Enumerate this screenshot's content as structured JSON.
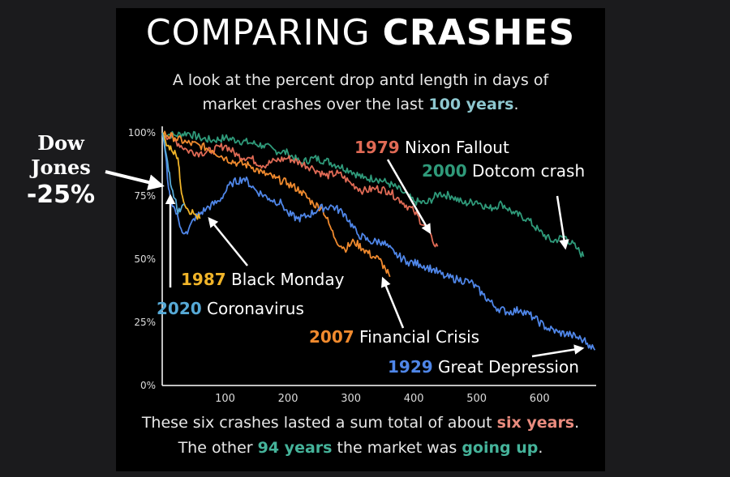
{
  "title": {
    "light": "COMPARING",
    "bold": "CRASHES"
  },
  "subtitle": {
    "line1": "A look at the percent drop antd length in days of",
    "line2_pre": "market crashes over the last ",
    "line2_accent": "100 years",
    "line2_post": "."
  },
  "side_note": {
    "line1": "Dow",
    "line2": "Jones",
    "line3": "-25%"
  },
  "footer": {
    "line1_pre": "These six crashes lasted a sum total of about ",
    "line1_accent": "six years",
    "line1_post": ".",
    "line2_pre": "The other ",
    "line2_accent1": "94 years",
    "line2_mid": " the market was ",
    "line2_accent2": "going up",
    "line2_post": "."
  },
  "colors": {
    "background": "#000000",
    "outer": "#1b1b1d",
    "great_depression": "#4f86e8",
    "financial_crisis": "#f08a2e",
    "nixon": "#e06a55",
    "dotcom": "#2f9a7a",
    "black_monday": "#f0b429",
    "coronavirus": "#56a9d6"
  },
  "chart_data": {
    "type": "line",
    "xlim": [
      0,
      690
    ],
    "ylim": [
      0,
      100
    ],
    "x_ticks": [
      "100",
      "200",
      "300",
      "400",
      "500",
      "600"
    ],
    "y_ticks": [
      "100%",
      "75%",
      "50%",
      "25%",
      "0%"
    ],
    "grid": false,
    "series": [
      {
        "name": "1929 Great Depression",
        "key": "great_depression",
        "label_year": "1929",
        "label_text": " Great Depression",
        "points": [
          [
            0,
            100
          ],
          [
            5,
            92
          ],
          [
            10,
            78
          ],
          [
            15,
            72
          ],
          [
            20,
            70
          ],
          [
            30,
            62
          ],
          [
            40,
            60
          ],
          [
            50,
            66
          ],
          [
            70,
            70
          ],
          [
            90,
            73
          ],
          [
            110,
            80
          ],
          [
            130,
            82
          ],
          [
            150,
            77
          ],
          [
            170,
            74
          ],
          [
            190,
            72
          ],
          [
            200,
            68
          ],
          [
            215,
            66
          ],
          [
            230,
            67
          ],
          [
            250,
            70
          ],
          [
            270,
            71
          ],
          [
            290,
            68
          ],
          [
            310,
            60
          ],
          [
            330,
            57
          ],
          [
            350,
            57
          ],
          [
            370,
            52
          ],
          [
            390,
            49
          ],
          [
            410,
            48
          ],
          [
            430,
            46
          ],
          [
            450,
            43
          ],
          [
            470,
            42
          ],
          [
            490,
            41
          ],
          [
            510,
            36
          ],
          [
            530,
            31
          ],
          [
            550,
            29
          ],
          [
            570,
            30
          ],
          [
            590,
            27
          ],
          [
            610,
            23
          ],
          [
            630,
            21
          ],
          [
            650,
            20
          ],
          [
            670,
            18
          ],
          [
            680,
            16
          ],
          [
            688,
            14
          ]
        ]
      },
      {
        "name": "2007 Financial Crisis",
        "key": "financial_crisis",
        "label_year": "2007",
        "label_text": " Financial Crisis",
        "points": [
          [
            0,
            100
          ],
          [
            20,
            98
          ],
          [
            40,
            96
          ],
          [
            60,
            95
          ],
          [
            80,
            93
          ],
          [
            100,
            90
          ],
          [
            120,
            88
          ],
          [
            140,
            87
          ],
          [
            160,
            84
          ],
          [
            180,
            82
          ],
          [
            200,
            80
          ],
          [
            220,
            77
          ],
          [
            240,
            72
          ],
          [
            255,
            70
          ],
          [
            265,
            64
          ],
          [
            275,
            58
          ],
          [
            290,
            54
          ],
          [
            305,
            57
          ],
          [
            320,
            54
          ],
          [
            335,
            51
          ],
          [
            345,
            50
          ],
          [
            355,
            46
          ],
          [
            362,
            43
          ]
        ]
      },
      {
        "name": "1979 Nixon Fallout",
        "key": "nixon",
        "label_year": "1979",
        "label_text": " Nixon Fallout",
        "points": [
          [
            0,
            100
          ],
          [
            20,
            97
          ],
          [
            40,
            93
          ],
          [
            60,
            92
          ],
          [
            80,
            93
          ],
          [
            100,
            95
          ],
          [
            120,
            91
          ],
          [
            140,
            90
          ],
          [
            160,
            87
          ],
          [
            180,
            89
          ],
          [
            200,
            90
          ],
          [
            220,
            88
          ],
          [
            240,
            86
          ],
          [
            260,
            83
          ],
          [
            280,
            84
          ],
          [
            300,
            80
          ],
          [
            320,
            77
          ],
          [
            340,
            78
          ],
          [
            360,
            77
          ],
          [
            380,
            73
          ],
          [
            400,
            69
          ],
          [
            420,
            62
          ],
          [
            430,
            57
          ],
          [
            438,
            55
          ]
        ]
      },
      {
        "name": "2000 Dotcom crash",
        "key": "dotcom",
        "label_year": "2000",
        "label_text": " Dotcom crash",
        "points": [
          [
            0,
            100
          ],
          [
            20,
            99
          ],
          [
            40,
            100
          ],
          [
            60,
            98
          ],
          [
            80,
            97
          ],
          [
            100,
            98
          ],
          [
            120,
            97
          ],
          [
            140,
            96
          ],
          [
            160,
            95
          ],
          [
            180,
            93
          ],
          [
            200,
            92
          ],
          [
            220,
            88
          ],
          [
            240,
            90
          ],
          [
            260,
            89
          ],
          [
            280,
            87
          ],
          [
            300,
            85
          ],
          [
            320,
            82
          ],
          [
            340,
            82
          ],
          [
            360,
            80
          ],
          [
            380,
            77
          ],
          [
            400,
            73
          ],
          [
            420,
            72
          ],
          [
            440,
            76
          ],
          [
            460,
            75
          ],
          [
            480,
            72
          ],
          [
            500,
            73
          ],
          [
            520,
            70
          ],
          [
            540,
            72
          ],
          [
            560,
            68
          ],
          [
            580,
            66
          ],
          [
            600,
            61
          ],
          [
            620,
            57
          ],
          [
            640,
            59
          ],
          [
            660,
            54
          ],
          [
            670,
            51
          ]
        ]
      },
      {
        "name": "1987 Black Monday",
        "key": "black_monday",
        "label_year": "1987",
        "label_text": " Black Monday",
        "points": [
          [
            0,
            100
          ],
          [
            5,
            97
          ],
          [
            10,
            95
          ],
          [
            15,
            93
          ],
          [
            20,
            93
          ],
          [
            25,
            90
          ],
          [
            28,
            82
          ],
          [
            32,
            75
          ],
          [
            40,
            70
          ],
          [
            50,
            68
          ],
          [
            60,
            66
          ]
        ]
      },
      {
        "name": "2020 Coronavirus",
        "key": "coronavirus",
        "label_year": "2020",
        "label_text": " Coronavirus",
        "points": [
          [
            0,
            100
          ],
          [
            5,
            93
          ],
          [
            10,
            85
          ],
          [
            15,
            78
          ],
          [
            20,
            74
          ],
          [
            25,
            68
          ],
          [
            30,
            70
          ],
          [
            35,
            72
          ]
        ]
      }
    ]
  }
}
